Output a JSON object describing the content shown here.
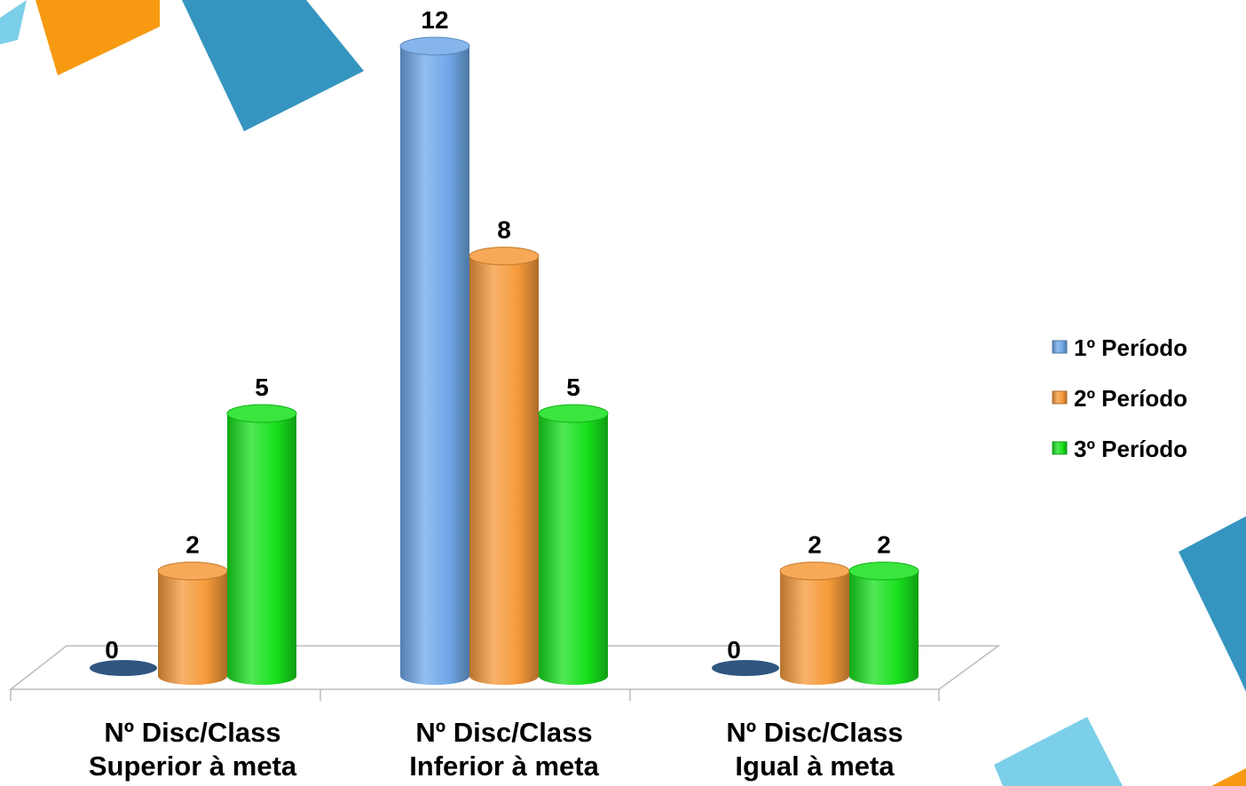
{
  "chart_data": {
    "type": "bar3d",
    "categories": [
      [
        "Nº Disc/Class",
        "Superior à meta"
      ],
      [
        "Nº Disc/Class",
        "Inferior à meta"
      ],
      [
        "Nº Disc/Class",
        "Igual à meta"
      ]
    ],
    "series": [
      {
        "name": "1º Período",
        "color": "#6fa8e8",
        "values": [
          0,
          12,
          0
        ]
      },
      {
        "name": "2º Período",
        "color": "#f59a3a",
        "values": [
          2,
          8,
          2
        ]
      },
      {
        "name": "3º Período",
        "color": "#17e01c",
        "values": [
          5,
          5,
          2
        ]
      }
    ],
    "legend": "right"
  }
}
